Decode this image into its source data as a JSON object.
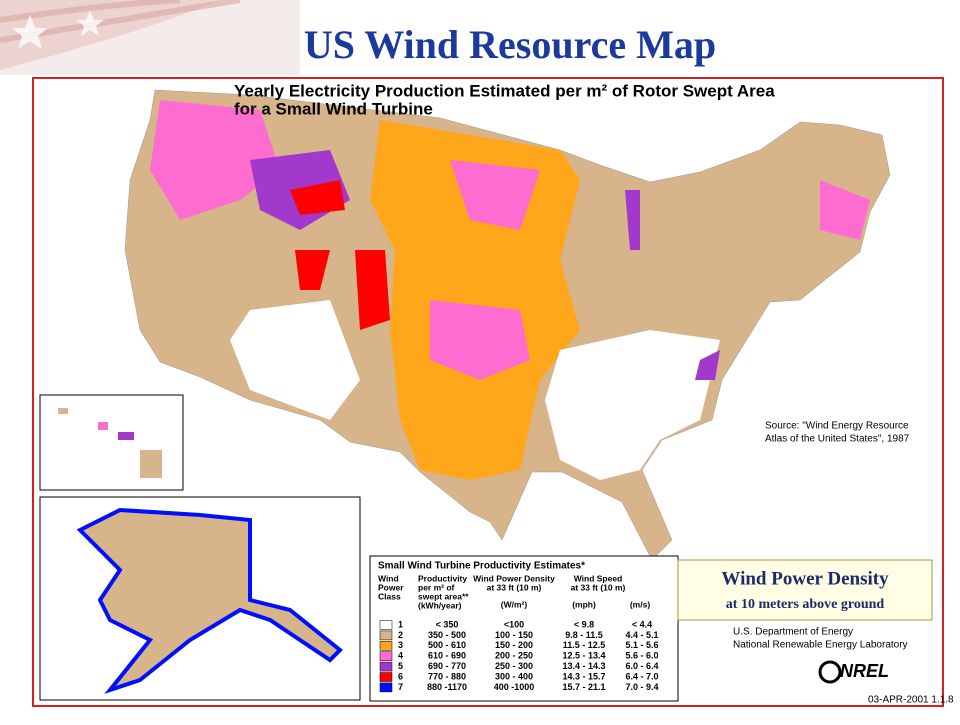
{
  "header": {
    "title": "US Wind Resource Map"
  },
  "map": {
    "title_lines": [
      "Yearly Electricity Production Estimated per m² of Rotor Swept Area",
      "for a Small Wind Turbine"
    ],
    "source_lines": [
      "Source:  \"Wind Energy Resource",
      "Atlas of the United States\", 1987"
    ]
  },
  "legend": {
    "title": "Small Wind Turbine Productivity Estimates*",
    "headers": [
      [
        "Wind",
        "Power",
        "Class"
      ],
      [
        "Productivity",
        "per m² of",
        "swept area**",
        "(kWh/year)"
      ],
      [
        "Wind Power Density",
        "at 33 ft (10 m)",
        "(W/m²)"
      ],
      [
        "Wind Speed",
        "at 33 ft (10 m)",
        "(mph)",
        "(m/s)"
      ]
    ],
    "rows": [
      {
        "class": "1",
        "color": "#ffffff",
        "productivity": "< 350",
        "density": "<100",
        "mph": "< 9.8",
        "ms": "< 4.4"
      },
      {
        "class": "2",
        "color": "#d8b48a",
        "productivity": "350 -  500",
        "density": "100 -  150",
        "mph": "9.8 - 11.5",
        "ms": "4.4 - 5.1"
      },
      {
        "class": "3",
        "color": "#ffa61a",
        "productivity": "500 -  610",
        "density": "150 -  200",
        "mph": "11.5 - 12.5",
        "ms": "5.1 - 5.6"
      },
      {
        "class": "4",
        "color": "#ff6ccf",
        "productivity": "610 -  690",
        "density": "200 -  250",
        "mph": "12.5 - 13.4",
        "ms": "5.6 - 6.0"
      },
      {
        "class": "5",
        "color": "#a238cc",
        "productivity": "690 -  770",
        "density": "250 -  300",
        "mph": "13.4 - 14.3",
        "ms": "6.0 - 6.4"
      },
      {
        "class": "6",
        "color": "#ff0000",
        "productivity": "770 -  880",
        "density": "300 -  400",
        "mph": "14.3 - 15.7",
        "ms": "6.4 - 7.0"
      },
      {
        "class": "7",
        "color": "#0010ff",
        "productivity": "880 -1170",
        "density": "400 -1000",
        "mph": "15.7 - 21.1",
        "ms": "7.0 - 9.4"
      }
    ]
  },
  "callout": {
    "title": "Wind Power Density",
    "subtitle": "at 10 meters above ground"
  },
  "credits": {
    "lines": [
      "U.S. Department of Energy",
      "National Renewable Energy Laboratory"
    ],
    "logo": "NREL",
    "date": "03-APR-2001 1.1.8"
  }
}
